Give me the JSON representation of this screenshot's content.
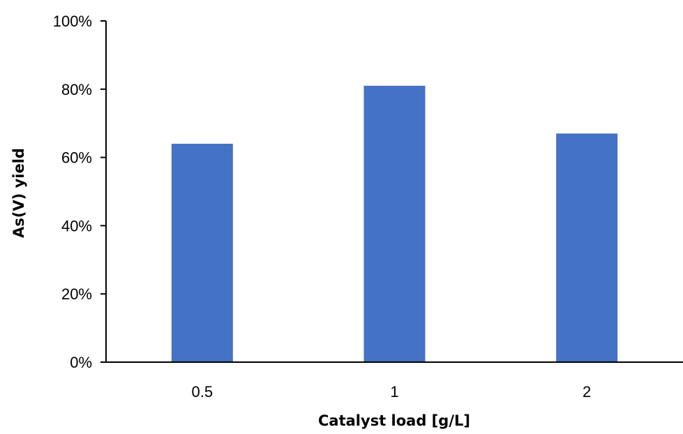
{
  "chart_data": {
    "type": "bar",
    "categories": [
      "0.5",
      "1",
      "2"
    ],
    "values": [
      0.64,
      0.81,
      0.67
    ],
    "xlabel": "Catalyst load [g/L]",
    "ylabel": "As(V) yield",
    "ylim": [
      0,
      1
    ],
    "yticks": [
      0,
      0.2,
      0.4,
      0.6,
      0.8,
      1.0
    ],
    "ytick_labels": [
      "0%",
      "20%",
      "40%",
      "60%",
      "80%",
      "100%"
    ],
    "grid": false,
    "legend": "none",
    "bar_color": "#4472C4"
  }
}
